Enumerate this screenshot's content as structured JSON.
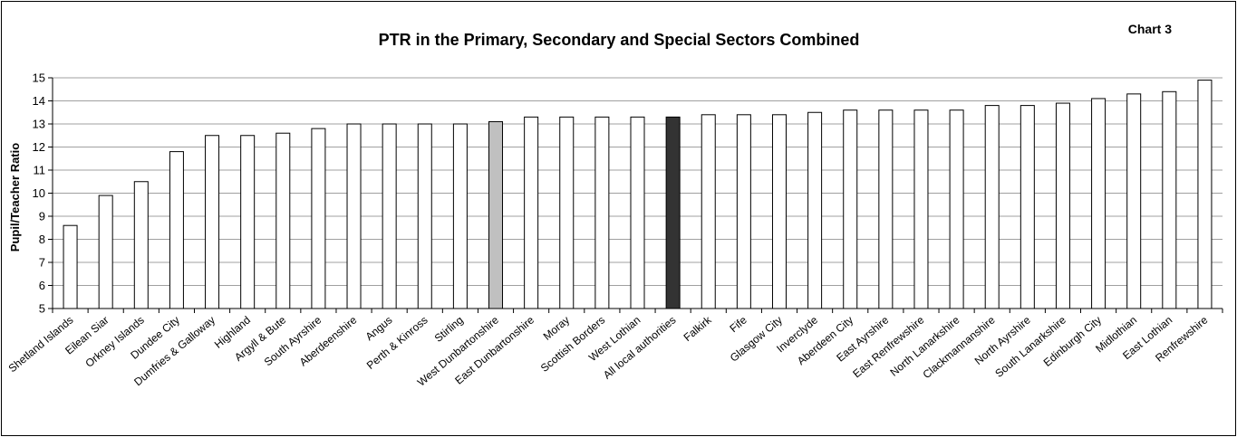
{
  "chart_data": {
    "type": "bar",
    "title": "PTR in the Primary, Secondary and Special Sectors Combined",
    "chart_number": "Chart 3",
    "xlabel": "",
    "ylabel": "Pupil/Teacher Ratio",
    "ylim": [
      5,
      15
    ],
    "yticks": [
      5,
      6,
      7,
      8,
      9,
      10,
      11,
      12,
      13,
      14,
      15
    ],
    "grid": true,
    "legend": "none",
    "categories": [
      "Shetland Islands",
      "Eilean Siar",
      "Orkney Islands",
      "Dundee City",
      "Dumfries & Galloway",
      "Highland",
      "Argyll & Bute",
      "South Ayrshire",
      "Aberdeenshire",
      "Angus",
      "Perth & Kinross",
      "Stirling",
      "West Dunbartonshire",
      "East Dunbartonshire",
      "Moray",
      "Scottish Borders",
      "West Lothian",
      "All local authorities",
      "Falkirk",
      "Fife",
      "Glasgow City",
      "Inverclyde",
      "Aberdeen City",
      "East Ayrshire",
      "East Renfrewshire",
      "North Lanarkshire",
      "Clackmannanshire",
      "North Ayrshire",
      "South Lanarkshire",
      "Edinburgh City",
      "Midlothian",
      "East Lothian",
      "Renfrewshire"
    ],
    "values": [
      8.6,
      9.9,
      10.5,
      11.8,
      12.5,
      12.5,
      12.6,
      12.8,
      13.0,
      13.0,
      13.0,
      13.0,
      13.1,
      13.3,
      13.3,
      13.3,
      13.3,
      13.3,
      13.4,
      13.4,
      13.4,
      13.5,
      13.6,
      13.6,
      13.6,
      13.6,
      13.8,
      13.8,
      13.9,
      14.1,
      14.3,
      14.4,
      14.9
    ],
    "colors": {
      "default": "#ffffff",
      "West Dunbartonshire": "#c0c0c0",
      "All local authorities": "#333333",
      "gridline": "#a0a0a0",
      "outline": "#000000"
    }
  }
}
